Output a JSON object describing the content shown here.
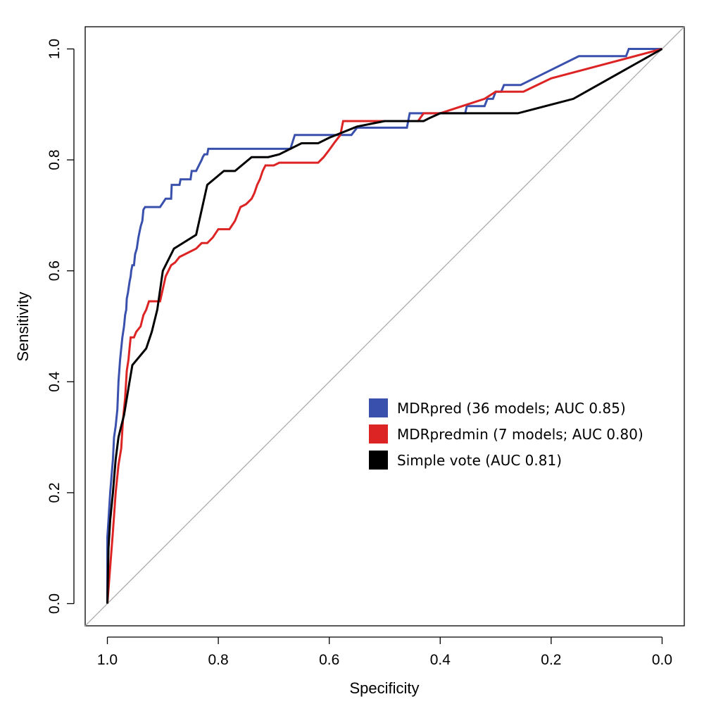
{
  "chart_data": {
    "type": "line",
    "title": "",
    "xlabel": "Specificity",
    "ylabel": "Sensitivity",
    "xlim": [
      1.04,
      -0.04
    ],
    "ylim": [
      -0.04,
      1.04
    ],
    "x_reversed": true,
    "x_ticks": [
      1.0,
      0.8,
      0.6,
      0.4,
      0.2,
      0.0
    ],
    "x_tick_labels": [
      "1.0",
      "0.8",
      "0.6",
      "0.4",
      "0.2",
      "0.0"
    ],
    "y_ticks": [
      0.0,
      0.2,
      0.4,
      0.6,
      0.8,
      1.0
    ],
    "y_tick_labels": [
      "0.0",
      "0.2",
      "0.4",
      "0.6",
      "0.8",
      "1.0"
    ],
    "grid": false,
    "legend_position": "center-right",
    "reference_line": {
      "name": "chance diagonal",
      "color": "#aaaaaa",
      "x": [
        1.0,
        0.0
      ],
      "y": [
        0.0,
        1.0
      ]
    },
    "series": [
      {
        "name": "MDRpred (36 models; AUC 0.85)",
        "color": "#3a50ad",
        "x": [
          1.0,
          1.0,
          0.998,
          0.995,
          0.99,
          0.988,
          0.985,
          0.982,
          0.98,
          0.977,
          0.975,
          0.973,
          0.97,
          0.968,
          0.966,
          0.965,
          0.963,
          0.96,
          0.958,
          0.957,
          0.955,
          0.952,
          0.95,
          0.947,
          0.944,
          0.942,
          0.94,
          0.937,
          0.935,
          0.932,
          0.93,
          0.928,
          0.925,
          0.905,
          0.895,
          0.885,
          0.884,
          0.87,
          0.868,
          0.85,
          0.848,
          0.84,
          0.835,
          0.83,
          0.828,
          0.825,
          0.82,
          0.818,
          0.81,
          0.67,
          0.662,
          0.6,
          0.56,
          0.55,
          0.49,
          0.46,
          0.455,
          0.355,
          0.352,
          0.32,
          0.315,
          0.305,
          0.3,
          0.29,
          0.285,
          0.255,
          0.15,
          0.065,
          0.06,
          0.0
        ],
        "y": [
          0.0,
          0.12,
          0.15,
          0.2,
          0.26,
          0.3,
          0.32,
          0.35,
          0.4,
          0.44,
          0.46,
          0.48,
          0.5,
          0.52,
          0.53,
          0.55,
          0.56,
          0.58,
          0.59,
          0.6,
          0.61,
          0.61,
          0.63,
          0.64,
          0.66,
          0.67,
          0.68,
          0.69,
          0.71,
          0.715,
          0.715,
          0.715,
          0.715,
          0.715,
          0.73,
          0.73,
          0.755,
          0.755,
          0.765,
          0.765,
          0.78,
          0.78,
          0.79,
          0.8,
          0.805,
          0.81,
          0.81,
          0.82,
          0.82,
          0.82,
          0.845,
          0.845,
          0.845,
          0.858,
          0.858,
          0.858,
          0.884,
          0.884,
          0.897,
          0.897,
          0.91,
          0.91,
          0.923,
          0.923,
          0.935,
          0.935,
          0.987,
          0.987,
          1.0,
          1.0
        ]
      },
      {
        "name": "MDRpredmin (7 models; AUC 0.80)",
        "color": "#dd2424",
        "x": [
          1.0,
          0.99,
          0.985,
          0.98,
          0.975,
          0.972,
          0.968,
          0.965,
          0.962,
          0.96,
          0.958,
          0.955,
          0.952,
          0.948,
          0.94,
          0.935,
          0.93,
          0.925,
          0.92,
          0.905,
          0.895,
          0.89,
          0.885,
          0.878,
          0.87,
          0.86,
          0.85,
          0.84,
          0.83,
          0.82,
          0.81,
          0.8,
          0.78,
          0.77,
          0.76,
          0.75,
          0.74,
          0.735,
          0.73,
          0.725,
          0.72,
          0.715,
          0.7,
          0.69,
          0.68,
          0.67,
          0.66,
          0.65,
          0.62,
          0.61,
          0.6,
          0.59,
          0.58,
          0.575,
          0.5,
          0.44,
          0.43,
          0.4,
          0.32,
          0.3,
          0.25,
          0.2,
          0.0
        ],
        "y": [
          0.0,
          0.13,
          0.2,
          0.25,
          0.28,
          0.33,
          0.37,
          0.42,
          0.44,
          0.46,
          0.48,
          0.48,
          0.48,
          0.49,
          0.5,
          0.52,
          0.53,
          0.545,
          0.545,
          0.545,
          0.59,
          0.6,
          0.61,
          0.615,
          0.625,
          0.63,
          0.635,
          0.64,
          0.65,
          0.65,
          0.66,
          0.675,
          0.675,
          0.69,
          0.715,
          0.72,
          0.73,
          0.74,
          0.755,
          0.765,
          0.78,
          0.79,
          0.79,
          0.795,
          0.795,
          0.795,
          0.795,
          0.795,
          0.795,
          0.805,
          0.818,
          0.832,
          0.845,
          0.87,
          0.87,
          0.87,
          0.884,
          0.884,
          0.91,
          0.923,
          0.923,
          0.947,
          1.0
        ]
      },
      {
        "name": "Simple vote (AUC 0.81)",
        "color": "#000000",
        "x": [
          1.0,
          0.998,
          0.995,
          0.99,
          0.985,
          0.98,
          0.975,
          0.97,
          0.96,
          0.955,
          0.93,
          0.92,
          0.91,
          0.9,
          0.88,
          0.84,
          0.82,
          0.79,
          0.77,
          0.74,
          0.71,
          0.69,
          0.65,
          0.62,
          0.6,
          0.55,
          0.5,
          0.48,
          0.45,
          0.43,
          0.42,
          0.4,
          0.3,
          0.26,
          0.16,
          0.0
        ],
        "y": [
          0.0,
          0.1,
          0.15,
          0.2,
          0.26,
          0.3,
          0.32,
          0.34,
          0.4,
          0.43,
          0.46,
          0.49,
          0.53,
          0.6,
          0.64,
          0.665,
          0.755,
          0.78,
          0.78,
          0.805,
          0.805,
          0.81,
          0.83,
          0.83,
          0.84,
          0.86,
          0.87,
          0.87,
          0.87,
          0.87,
          0.875,
          0.884,
          0.884,
          0.884,
          0.91,
          1.0
        ]
      }
    ]
  }
}
